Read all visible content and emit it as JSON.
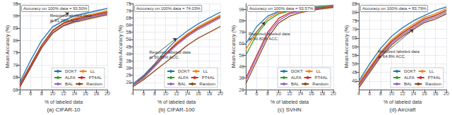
{
  "chart_data": [
    {
      "type": "line",
      "title": "(a) CIFAR-10",
      "xlabel": "% of labeled data",
      "ylabel": "Mean Accuracy (%)",
      "annotations": [
        {
          "text": "Accuracy on 100% data = 93.50%"
        },
        {
          "text": "Required labeled data\nat 91.30% ACC.",
          "xytext": [
            9.5,
            87.0
          ],
          "xy": [
            13,
            91.3
          ]
        }
      ],
      "x": [
        4,
        6,
        8,
        10,
        12,
        14,
        16,
        18,
        20
      ],
      "series": [
        {
          "name": "DOKT",
          "color": "#1f77b4",
          "values": [
            63,
            72,
            80,
            85.5,
            88,
            90,
            91,
            92,
            93
          ]
        },
        {
          "name": "LL",
          "color": "#ff7f0e",
          "values": [
            62,
            70,
            78,
            84,
            87,
            89,
            90,
            91,
            92
          ]
        },
        {
          "name": "ALFA",
          "color": "#2ca02c",
          "values": [
            62,
            70,
            78,
            84,
            87,
            88.5,
            89.5,
            90.5,
            91.5
          ]
        },
        {
          "name": "PT4AL",
          "color": "#d62728",
          "values": [
            62,
            70,
            78,
            84,
            87,
            88.5,
            89.5,
            90.5,
            91.5
          ]
        },
        {
          "name": "BAL",
          "color": "#9467bd",
          "values": [
            61,
            69,
            77,
            83,
            86,
            88,
            89,
            90,
            91
          ]
        },
        {
          "name": "Random",
          "color": "#8B4513",
          "values": [
            61,
            69,
            77,
            83,
            86,
            87.5,
            88.5,
            89.5,
            90.5
          ]
        }
      ],
      "std": 0.5,
      "xlim": [
        4,
        20
      ],
      "ylim": [
        60,
        95
      ],
      "xticks": [
        4,
        6,
        8,
        10,
        12,
        14,
        16,
        18,
        20
      ],
      "yticks": [
        60,
        65,
        70,
        75,
        80,
        85,
        90,
        95
      ],
      "grid": true,
      "legend": "lower right"
    },
    {
      "type": "line",
      "title": "(b) CIFAR-100",
      "xlabel": "% of labeled data",
      "ylabel": "Mean Accuracy (%)",
      "annotations": [
        {
          "text": "Accuracy on 100% data = 74.03%"
        },
        {
          "text": "Required labeled data\nat 50.85% ACC.",
          "xytext": [
            7.0,
            36
          ],
          "xy": [
            12,
            50.85
          ]
        }
      ],
      "x": [
        4,
        6,
        8,
        10,
        12,
        14,
        16,
        18,
        20
      ],
      "series": [
        {
          "name": "DOKT",
          "color": "#1f77b4",
          "values": [
            19,
            25,
            33,
            42,
            50,
            56,
            61,
            65,
            69
          ]
        },
        {
          "name": "LL",
          "color": "#ff7f0e",
          "values": [
            18,
            24,
            32,
            40,
            48,
            54,
            59,
            63,
            67
          ]
        },
        {
          "name": "ALFA",
          "color": "#2ca02c",
          "values": [
            18,
            24,
            32,
            40,
            47,
            53,
            58,
            62,
            66
          ]
        },
        {
          "name": "PT4AL",
          "color": "#d62728",
          "values": [
            18,
            24,
            32,
            40,
            47,
            53,
            58,
            62,
            66
          ]
        },
        {
          "name": "BAL",
          "color": "#9467bd",
          "values": [
            18,
            23,
            31,
            39,
            46,
            52,
            57,
            61,
            65
          ]
        },
        {
          "name": "Random",
          "color": "#8B4513",
          "values": [
            17,
            22,
            28,
            34,
            40,
            46,
            51,
            55,
            59
          ]
        }
      ],
      "std": 0.5,
      "xlim": [
        4,
        20
      ],
      "ylim": [
        15,
        75
      ],
      "xticks": [
        4,
        6,
        8,
        10,
        12,
        14,
        16,
        18,
        20
      ],
      "yticks": [
        20,
        25,
        30,
        35,
        40,
        45,
        50,
        55,
        60,
        65,
        70,
        75
      ],
      "grid": true,
      "legend": "lower right"
    },
    {
      "type": "line",
      "title": "(c) SVHN",
      "xlabel": "% of labeled data",
      "ylabel": "Mean Accuracy (%)",
      "annotations": [
        {
          "text": "Accuracy on 100% data = 93.57%"
        },
        {
          "text": "Required labeled data\nat 90.82% ACC.",
          "xytext": [
            4.5,
            62
          ],
          "xy": [
            7.5,
            79
          ]
        }
      ],
      "x": [
        4,
        6,
        8,
        10,
        12,
        14,
        16,
        18,
        20
      ],
      "series": [
        {
          "name": "DOKT",
          "color": "#1f77b4",
          "values": [
            60,
            75,
            84,
            88,
            90,
            91.5,
            92.5,
            93,
            93.5
          ]
        },
        {
          "name": "LL",
          "color": "#ff7f0e",
          "values": [
            55,
            70,
            82,
            87,
            89,
            90.5,
            91.5,
            92,
            93
          ]
        },
        {
          "name": "ALFA",
          "color": "#2ca02c",
          "values": [
            50,
            68,
            80,
            86,
            88.5,
            90,
            91,
            92,
            92.5
          ]
        },
        {
          "name": "PT4AL",
          "color": "#d62728",
          "values": [
            30,
            50,
            70,
            82,
            87,
            89,
            90.5,
            91.5,
            92.5
          ]
        },
        {
          "name": "BAL",
          "color": "#9467bd",
          "values": [
            28,
            48,
            68,
            80,
            86,
            88,
            89.5,
            91,
            92
          ]
        },
        {
          "name": "Random",
          "color": "#8B4513",
          "values": [
            25,
            45,
            65,
            78,
            84,
            87,
            89,
            90.5,
            91.5
          ]
        }
      ],
      "std": 0.5,
      "xlim": [
        4,
        20
      ],
      "ylim": [
        20,
        95
      ],
      "xticks": [
        4,
        6,
        8,
        10,
        12,
        14,
        16,
        18,
        20
      ],
      "yticks": [
        20,
        30,
        40,
        50,
        60,
        70,
        80,
        90
      ],
      "grid": true,
      "legend": "lower right"
    },
    {
      "type": "line",
      "title": "(d) Aircraft",
      "xlabel": "% of labeled data",
      "ylabel": "Mean Accuracy (%)",
      "annotations": [
        {
          "text": "Accuracy on 100% data = 83.79%"
        },
        {
          "text": "Required labeled data\nat 64.8% ACC.",
          "xytext": [
            7.5,
            53
          ],
          "xy": [
            14,
            70
          ]
        }
      ],
      "x": [
        4,
        6,
        8,
        10,
        12,
        14,
        16,
        18,
        20
      ],
      "series": [
        {
          "name": "DOKT",
          "color": "#1f77b4",
          "values": [
            40,
            50,
            59,
            66,
            71,
            75,
            78,
            81,
            83
          ]
        },
        {
          "name": "LL",
          "color": "#ff7f0e",
          "values": [
            39,
            48,
            57,
            64,
            69,
            73,
            77,
            79,
            82
          ]
        },
        {
          "name": "ALFA",
          "color": "#2ca02c",
          "values": [
            38,
            47,
            56,
            63,
            68,
            72,
            76,
            78,
            81
          ]
        },
        {
          "name": "PT4AL",
          "color": "#d62728",
          "values": [
            38,
            47,
            56,
            63,
            68,
            72,
            76,
            78,
            81
          ]
        },
        {
          "name": "BAL",
          "color": "#9467bd",
          "values": [
            37,
            46,
            55,
            62,
            67,
            71,
            75,
            77,
            80
          ]
        },
        {
          "name": "Random",
          "color": "#8B4513",
          "values": [
            36,
            45,
            54,
            61,
            66,
            70,
            74,
            76,
            79
          ]
        }
      ],
      "std": 0.5,
      "xlim": [
        4,
        20
      ],
      "ylim": [
        35,
        85
      ],
      "xticks": [
        4,
        6,
        8,
        10,
        12,
        14,
        16,
        18,
        20
      ],
      "yticks": [
        40,
        45,
        50,
        55,
        60,
        65,
        70,
        75,
        80,
        85
      ],
      "grid": true,
      "legend": "lower right"
    }
  ]
}
